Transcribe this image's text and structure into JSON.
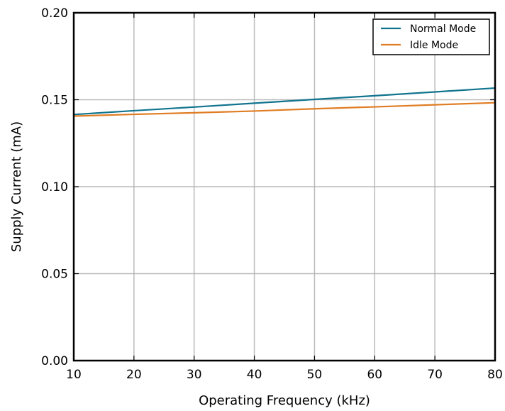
{
  "chart_data": {
    "type": "line",
    "title": "",
    "xlabel": "Operating Frequency (kHz)",
    "ylabel": "Supply Current (mA)",
    "xlim": [
      10,
      80
    ],
    "ylim": [
      0.0,
      0.2
    ],
    "x_ticks": [
      10,
      20,
      30,
      40,
      50,
      60,
      70,
      80
    ],
    "y_ticks": [
      0.0,
      0.05,
      0.1,
      0.15,
      0.2
    ],
    "x_tick_labels": [
      "10",
      "20",
      "30",
      "40",
      "50",
      "60",
      "70",
      "80"
    ],
    "y_tick_labels": [
      "0.00",
      "0.05",
      "0.10",
      "0.15",
      "0.20"
    ],
    "grid": true,
    "legend_position": "top-right",
    "x": [
      10,
      20,
      30,
      40,
      50,
      60,
      70,
      80
    ],
    "series": [
      {
        "name": "Normal Mode",
        "color": "#11748f",
        "values": [
          0.1415,
          0.1437,
          0.1458,
          0.148,
          0.1502,
          0.1523,
          0.1545,
          0.1567
        ]
      },
      {
        "name": "Idle Mode",
        "color": "#e07d24",
        "values": [
          0.1406,
          0.1416,
          0.1425,
          0.1435,
          0.1448,
          0.1459,
          0.1471,
          0.1483
        ]
      }
    ]
  }
}
